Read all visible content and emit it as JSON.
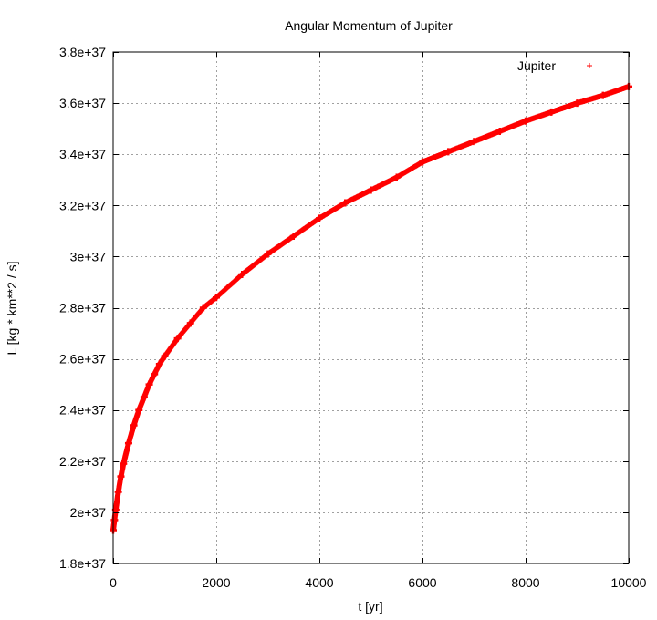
{
  "chart_data": {
    "type": "scatter",
    "title": "Angular Momentum of Jupiter",
    "xlabel": "t [yr]",
    "ylabel": "L [kg * km**2 / s]",
    "xlim": [
      0,
      10000
    ],
    "ylim": [
      1.8e+37,
      3.8e+37
    ],
    "x_ticks": [
      0,
      2000,
      4000,
      6000,
      8000,
      10000
    ],
    "x_tick_labels": [
      "0",
      "2000",
      "4000",
      "6000",
      "8000",
      "10000"
    ],
    "y_ticks": [
      1.8e+37,
      2e+37,
      2.2e+37,
      2.4e+37,
      2.6e+37,
      2.8e+37,
      3e+37,
      3.2e+37,
      3.4e+37,
      3.6e+37,
      3.8e+37
    ],
    "y_tick_labels": [
      "1.8e+37",
      "2e+37",
      "2.2e+37",
      "2.4e+37",
      "2.6e+37",
      "2.8e+37",
      "3e+37",
      "3.2e+37",
      "3.4e+37",
      "3.6e+37",
      "3.8e+37"
    ],
    "grid": true,
    "legend_position": "top-right",
    "series": [
      {
        "name": "Jupiter",
        "color": "#ff0000",
        "marker": "plus",
        "x": [
          0,
          25,
          50,
          100,
          150,
          200,
          300,
          400,
          500,
          600,
          700,
          800,
          900,
          1000,
          1250,
          1500,
          1750,
          2000,
          2500,
          3000,
          3500,
          4000,
          4500,
          5000,
          5500,
          6000,
          6500,
          7000,
          7500,
          8000,
          8500,
          9000,
          9500,
          10000
        ],
        "y": [
          1.93e+37,
          1.97e+37,
          2.01e+37,
          2.08e+37,
          2.14e+37,
          2.19e+37,
          2.27e+37,
          2.34e+37,
          2.4e+37,
          2.45e+37,
          2.5e+37,
          2.54e+37,
          2.58e+37,
          2.61e+37,
          2.68e+37,
          2.74e+37,
          2.8e+37,
          2.84e+37,
          2.93e+37,
          3.01e+37,
          3.08e+37,
          3.15e+37,
          3.21e+37,
          3.26e+37,
          3.31e+37,
          3.37e+37,
          3.41e+37,
          3.45e+37,
          3.49e+37,
          3.53e+37,
          3.565e+37,
          3.6e+37,
          3.63e+37,
          3.665e+37
        ]
      }
    ]
  }
}
